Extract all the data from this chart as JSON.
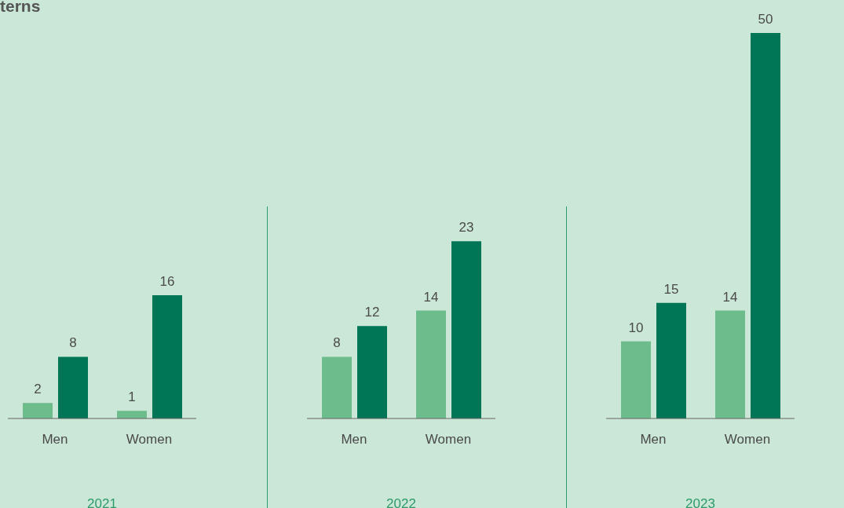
{
  "chart_data": [
    {
      "type": "bar",
      "title": "terns",
      "categories": [
        "Men",
        "Women"
      ],
      "xlabel": "2021",
      "tick_labels": "x",
      "data_labels": true,
      "grid": false,
      "legend": false,
      "series": [
        {
          "color": "#6dbd8c",
          "values": [
            2,
            1
          ]
        },
        {
          "color": "#007656",
          "values": [
            8,
            16
          ]
        }
      ]
    },
    {
      "type": "bar",
      "categories": [
        "Men",
        "Women"
      ],
      "xlabel": "2022",
      "tick_labels": "x",
      "data_labels": true,
      "grid": false,
      "legend": false,
      "series": [
        {
          "color": "#6dbd8c",
          "values": [
            8,
            14
          ]
        },
        {
          "color": "#007656",
          "values": [
            12,
            23
          ]
        }
      ]
    },
    {
      "type": "bar",
      "categories": [
        "Men",
        "Women"
      ],
      "xlabel": "2023",
      "tick_labels": "x",
      "data_labels": true,
      "grid": false,
      "legend": false,
      "series": [
        {
          "color": "#6dbd8c",
          "values": [
            10,
            14
          ]
        },
        {
          "color": "#007656",
          "values": [
            15,
            50
          ]
        }
      ]
    }
  ]
}
